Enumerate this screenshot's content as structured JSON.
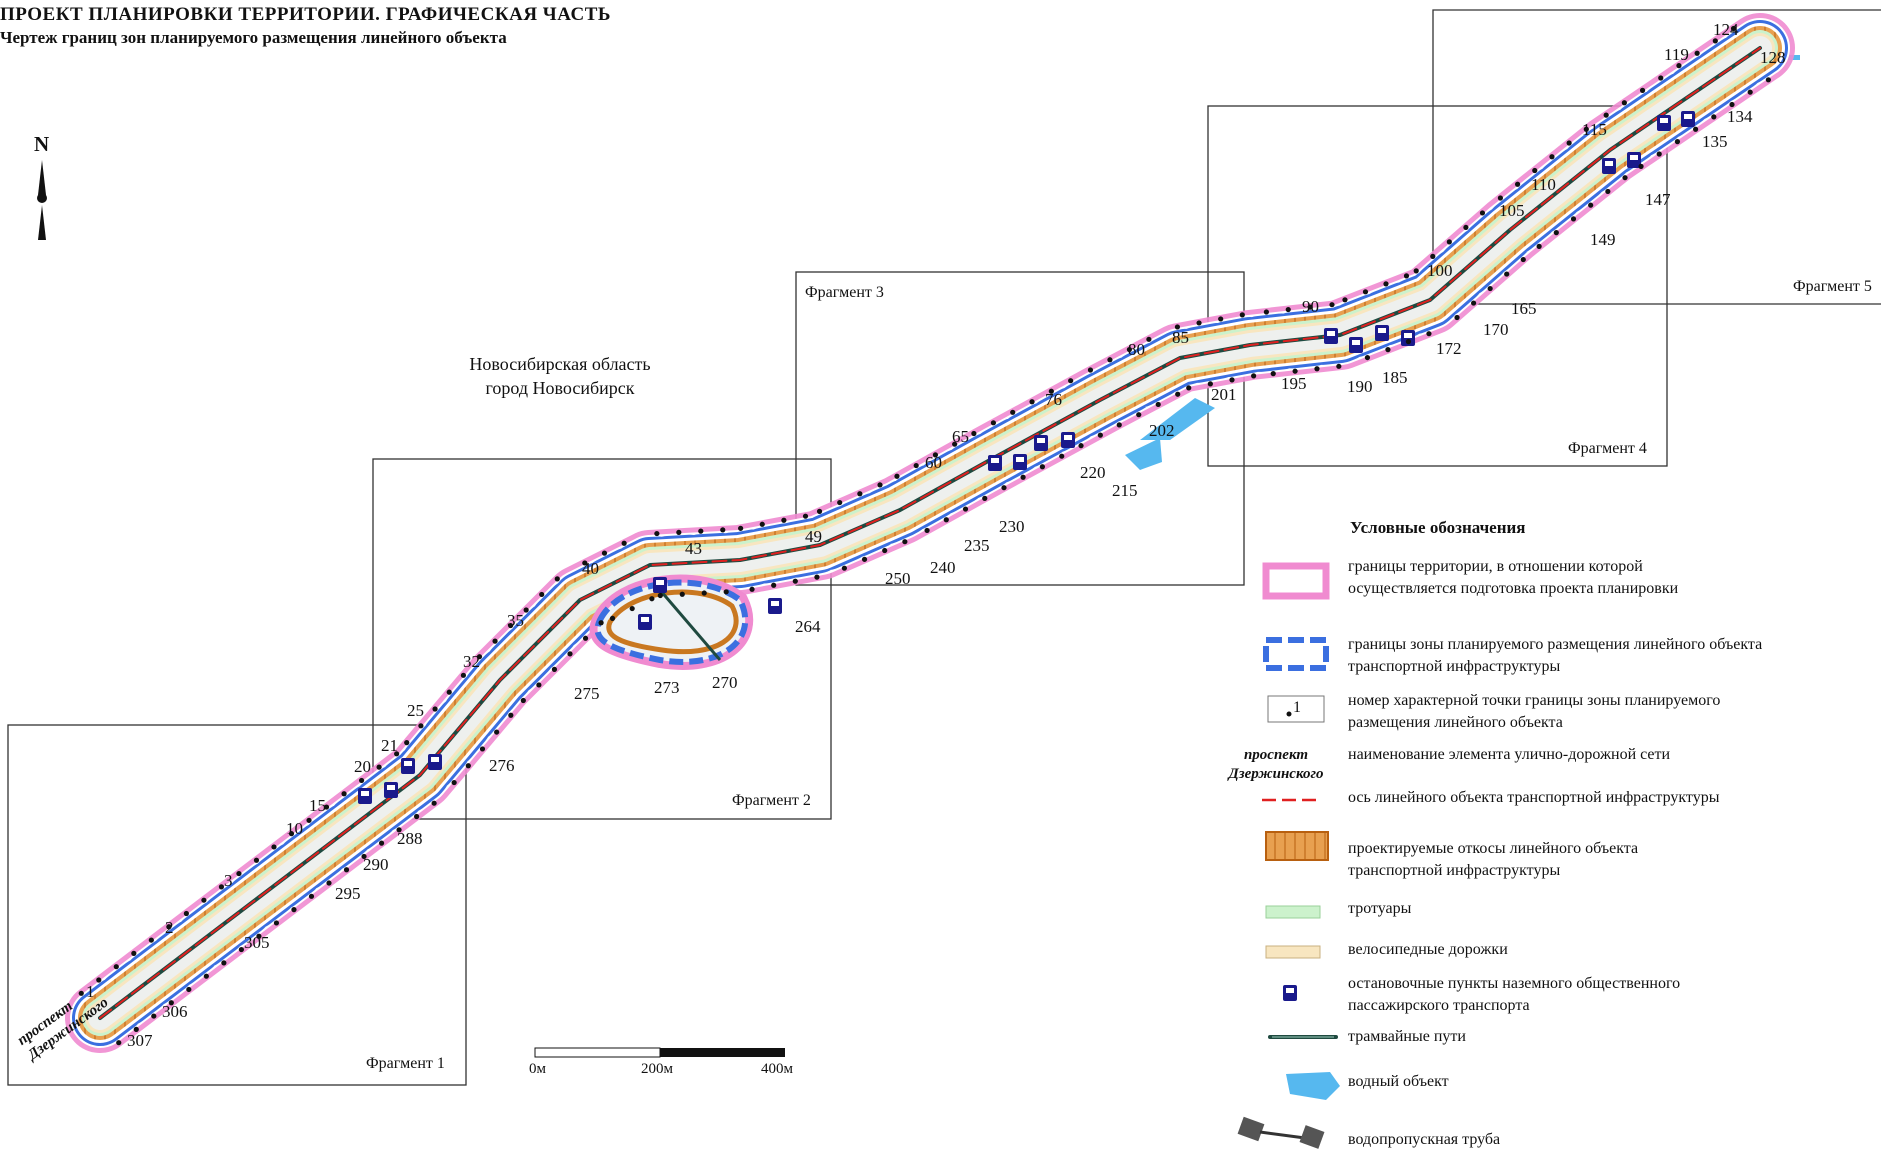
{
  "title": {
    "main": "ПРОЕКТ ПЛАНИРОВКИ ТЕРРИТОРИИ. ГРАФИЧЕСКАЯ ЧАСТЬ",
    "sub": "Чертеж границ зон планируемого размещения линейного объекта"
  },
  "north": "N",
  "region": "Новосибирская область\nгород Новосибирск",
  "street_label": "проспект\nДзержинского",
  "fragments": [
    "Фрагмент 1",
    "Фрагмент 2",
    "Фрагмент 3",
    "Фрагмент 4",
    "Фрагмент 5"
  ],
  "scale": {
    "labels": [
      "0м",
      "200м",
      "400м"
    ]
  },
  "colors": {
    "pink_border": "#f08bd0",
    "blue_border": "#3b6fe0",
    "axis": "#e02020",
    "slope": "#c97820",
    "sidewalk": "#ccf2cc",
    "bike": "#f8e6c0",
    "tram": "#1f4a40",
    "water": "#56b8ef",
    "stop": "#1a1a8c"
  },
  "point_labels": [
    {
      "n": "1"
    },
    {
      "n": "2"
    },
    {
      "n": "3"
    },
    {
      "n": "10"
    },
    {
      "n": "15"
    },
    {
      "n": "20"
    },
    {
      "n": "21"
    },
    {
      "n": "25"
    },
    {
      "n": "32"
    },
    {
      "n": "35"
    },
    {
      "n": "40"
    },
    {
      "n": "43"
    },
    {
      "n": "49"
    },
    {
      "n": "60"
    },
    {
      "n": "65"
    },
    {
      "n": "76"
    },
    {
      "n": "80"
    },
    {
      "n": "85"
    },
    {
      "n": "90"
    },
    {
      "n": "100"
    },
    {
      "n": "105"
    },
    {
      "n": "110"
    },
    {
      "n": "115"
    },
    {
      "n": "119"
    },
    {
      "n": "124"
    },
    {
      "n": "128"
    },
    {
      "n": "134"
    },
    {
      "n": "135"
    },
    {
      "n": "147"
    },
    {
      "n": "149"
    },
    {
      "n": "165"
    },
    {
      "n": "170"
    },
    {
      "n": "172"
    },
    {
      "n": "185"
    },
    {
      "n": "190"
    },
    {
      "n": "195"
    },
    {
      "n": "201"
    },
    {
      "n": "202"
    },
    {
      "n": "215"
    },
    {
      "n": "220"
    },
    {
      "n": "230"
    },
    {
      "n": "235"
    },
    {
      "n": "240"
    },
    {
      "n": "250"
    },
    {
      "n": "264"
    },
    {
      "n": "270"
    },
    {
      "n": "273"
    },
    {
      "n": "275"
    },
    {
      "n": "276"
    },
    {
      "n": "288"
    },
    {
      "n": "290"
    },
    {
      "n": "295"
    },
    {
      "n": "305"
    },
    {
      "n": "306"
    },
    {
      "n": "307"
    }
  ],
  "legend": {
    "heading": "Условные обозначения",
    "items": [
      {
        "key": "pink",
        "text": "границы территории, в отношении которой\nосуществляется подготовка проекта планировки"
      },
      {
        "key": "blue",
        "text": "границы зоны планируемого размещения линейного объекта\nтранспортной инфраструктуры"
      },
      {
        "key": "point",
        "swatch_label": "1",
        "text": "номер характерной точки границы зоны планируемого\nразмещения линейного объекта"
      },
      {
        "key": "street",
        "text": "наименование элемента улично-дорожной сети"
      },
      {
        "key": "axis",
        "text": "ось линейного объекта транспортной инфраструктуры"
      },
      {
        "key": "slope",
        "text": "проектируемые откосы линейного объекта\nтранспортной инфраструктуры"
      },
      {
        "key": "sidewalk",
        "text": "тротуары"
      },
      {
        "key": "bike",
        "text": "велосипедные дорожки"
      },
      {
        "key": "stop",
        "text": "остановочные пункты наземного общественного\nпассажирского транспорта"
      },
      {
        "key": "tram",
        "text": "трамвайные пути"
      },
      {
        "key": "water",
        "text": "водный объект"
      },
      {
        "key": "culvert",
        "text": "водопропускная труба"
      }
    ]
  }
}
